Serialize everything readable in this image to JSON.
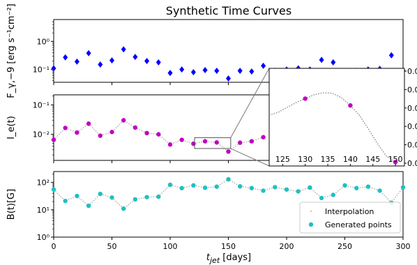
{
  "chart_data": {
    "type": "line",
    "title": "Synthetic Time Curves",
    "xlabel": "t_jet [days]",
    "xlim": [
      0,
      300
    ],
    "xticks": [
      0,
      50,
      100,
      150,
      200,
      250,
      300
    ],
    "panels": [
      {
        "id": "flux",
        "ylabel": "F_γ,−9 [erg s⁻¹cm⁻²]",
        "yscale": "log",
        "ylim": [
          0.035,
          6
        ],
        "yticks": [
          {
            "v": 1,
            "label": "10⁰"
          },
          {
            "v": 0.1,
            "label": "10⁻¹"
          }
        ],
        "series": [
          {
            "kind": "scatter",
            "marker": "diamond",
            "color": "#0000ff",
            "x": [
              0,
              10,
              20,
              30,
              40,
              50,
              60,
              70,
              80,
              90,
              100,
              110,
              120,
              130,
              140,
              150,
              160,
              170,
              180,
              190,
              200,
              210,
              220,
              230,
              240,
              250,
              260,
              270,
              280,
              290,
              300
            ],
            "y": [
              0.11,
              0.27,
              0.19,
              0.38,
              0.15,
              0.21,
              0.52,
              0.28,
              0.2,
              0.18,
              0.075,
              0.1,
              0.08,
              0.095,
              0.09,
              0.048,
              0.09,
              0.085,
              0.135,
              0.09,
              0.1,
              0.11,
              0.1,
              0.22,
              0.18,
              0.07,
              0.09,
              0.1,
              0.105,
              0.32,
              0.09
            ]
          }
        ]
      },
      {
        "id": "ie",
        "ylabel": "I_e(t)",
        "yscale": "log",
        "ylim": [
          0.0013,
          0.22
        ],
        "yticks": [
          {
            "v": 0.1,
            "label": "10⁻¹"
          },
          {
            "v": 0.01,
            "label": "10⁻²"
          }
        ],
        "series": [
          {
            "name": "Interpolation",
            "kind": "line",
            "style": "dotted",
            "color": "#aaaaaa",
            "x": [
              0,
              10,
              20,
              30,
              40,
              50,
              60,
              70,
              80,
              90,
              100,
              110,
              120,
              130,
              140,
              150,
              160,
              170,
              180
            ],
            "y": [
              0.0065,
              0.0165,
              0.0115,
              0.023,
              0.009,
              0.012,
              0.03,
              0.017,
              0.011,
              0.01,
              0.0045,
              0.0065,
              0.0048,
              0.0058,
              0.0053,
              0.0026,
              0.0052,
              0.0058,
              0.008
            ]
          },
          {
            "name": "Generated points",
            "kind": "scatter",
            "marker": "circle",
            "color": "#c000c0",
            "x": [
              0,
              10,
              20,
              30,
              40,
              50,
              60,
              70,
              80,
              90,
              100,
              110,
              120,
              130,
              140,
              150,
              160,
              170,
              180
            ],
            "y": [
              0.0065,
              0.0165,
              0.0115,
              0.023,
              0.009,
              0.012,
              0.03,
              0.017,
              0.011,
              0.01,
              0.0045,
              0.0065,
              0.0048,
              0.0058,
              0.0053,
              0.0026,
              0.0052,
              0.0058,
              0.008
            ]
          }
        ],
        "zoom_box": {
          "x": [
            121,
            152
          ],
          "y": [
            0.0033,
            0.0077
          ]
        }
      },
      {
        "id": "b",
        "ylabel": "B(t)[G]",
        "yscale": "log",
        "ylim": [
          1,
          250
        ],
        "yticks": [
          {
            "v": 100,
            "label": "10²"
          },
          {
            "v": 10,
            "label": "10¹"
          },
          {
            "v": 1,
            "label": "10⁰"
          }
        ],
        "legend": "lower-right",
        "series": [
          {
            "name": "Interpolation",
            "kind": "line",
            "style": "dotted",
            "color": "#aaaaaa",
            "x": [
              0,
              10,
              20,
              30,
              40,
              50,
              60,
              70,
              80,
              90,
              100,
              110,
              120,
              130,
              140,
              150,
              160,
              170,
              180,
              190,
              200,
              210,
              220,
              230,
              240,
              250,
              260,
              270,
              280,
              290,
              300
            ],
            "y": [
              55,
              21,
              32,
              14,
              38,
              28,
              11,
              24,
              29,
              30,
              82,
              62,
              78,
              64,
              70,
              130,
              72,
              62,
              50,
              67,
              55,
              47,
              65,
              27,
              35,
              78,
              62,
              70,
              50,
              18,
              66
            ]
          },
          {
            "name": "Generated points",
            "kind": "scatter",
            "marker": "circle",
            "color": "#20c0c0",
            "x": [
              0,
              10,
              20,
              30,
              40,
              50,
              60,
              70,
              80,
              90,
              100,
              110,
              120,
              130,
              140,
              150,
              160,
              170,
              180,
              190,
              200,
              210,
              220,
              230,
              240,
              250,
              260,
              270,
              280,
              290,
              300
            ],
            "y": [
              55,
              21,
              32,
              14,
              38,
              28,
              11,
              24,
              29,
              30,
              82,
              62,
              78,
              64,
              70,
              130,
              72,
              62,
              50,
              67,
              55,
              47,
              65,
              27,
              35,
              78,
              62,
              70,
              50,
              18,
              66
            ]
          }
        ]
      }
    ],
    "inset": {
      "xlim": [
        122,
        152
      ],
      "xticks": [
        125,
        130,
        135,
        140,
        145,
        150
      ],
      "yticks": [
        "0.0",
        "0.0",
        "0.0",
        "0.0",
        "0.0",
        "0.0"
      ],
      "curve_x": [
        122,
        124,
        126,
        128,
        130,
        132,
        134,
        136,
        138,
        140,
        142,
        144,
        146,
        148,
        150,
        151
      ],
      "curve_y": [
        0.52,
        0.55,
        0.6,
        0.65,
        0.69,
        0.73,
        0.75,
        0.745,
        0.7,
        0.62,
        0.52,
        0.38,
        0.23,
        0.1,
        0.04,
        0.06
      ],
      "points_x": [
        130,
        140,
        150
      ],
      "points_y": [
        0.69,
        0.62,
        0.04
      ]
    },
    "legend": [
      "Interpolation",
      "Generated points"
    ]
  }
}
